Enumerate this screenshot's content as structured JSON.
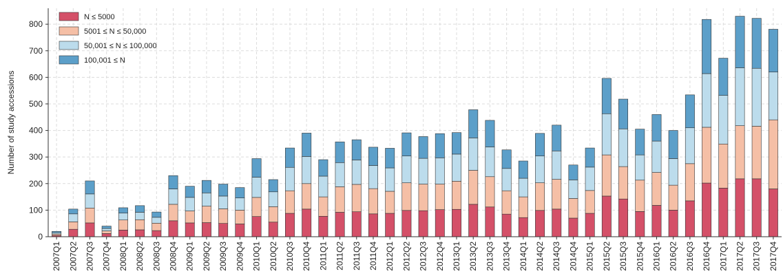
{
  "chart_data": {
    "type": "bar",
    "stacked": true,
    "ylabel": "Number of study accessions",
    "xlabel": "",
    "ylim": [
      0,
      860
    ],
    "yticks": [
      0,
      100,
      200,
      300,
      400,
      500,
      600,
      700,
      800
    ],
    "grid": true,
    "legend_position": "top-left",
    "categories": [
      "2007Q1",
      "2007Q2",
      "2007Q3",
      "2007Q4",
      "2008Q1",
      "2008Q2",
      "2008Q3",
      "2008Q4",
      "2009Q1",
      "2009Q2",
      "2009Q3",
      "2009Q4",
      "2010Q1",
      "2010Q2",
      "2010Q3",
      "2010Q4",
      "2011Q1",
      "2011Q2",
      "2011Q3",
      "2011Q4",
      "2012Q1",
      "2012Q2",
      "2012Q3",
      "2012Q4",
      "2013Q1",
      "2013Q2",
      "2013Q3",
      "2013Q4",
      "2014Q1",
      "2014Q2",
      "2014Q3",
      "2014Q4",
      "2015Q1",
      "2015Q2",
      "2015Q3",
      "2015Q4",
      "2016Q1",
      "2016Q2",
      "2016Q3",
      "2016Q4",
      "2017Q1",
      "2017Q2",
      "2017Q3",
      "2017Q4"
    ],
    "series": [
      {
        "name": "N ≤ 5000",
        "color": "#d45068",
        "values": [
          5,
          28,
          52,
          12,
          25,
          26,
          23,
          60,
          52,
          53,
          50,
          48,
          76,
          55,
          88,
          104,
          77,
          92,
          94,
          86,
          88,
          99,
          98,
          102,
          103,
          122,
          112,
          85,
          72,
          99,
          104,
          70,
          88,
          153,
          142,
          95,
          118,
          100,
          135,
          202,
          183,
          218,
          218,
          180
        ]
      },
      {
        "name": "5001 ≤ N ≤ 50,000",
        "color": "#f5bfa6",
        "values": [
          5,
          28,
          56,
          10,
          38,
          38,
          28,
          62,
          45,
          62,
          55,
          52,
          72,
          58,
          85,
          96,
          73,
          96,
          103,
          95,
          83,
          104,
          100,
          96,
          106,
          128,
          114,
          88,
          78,
          104,
          112,
          74,
          86,
          155,
          122,
          118,
          124,
          94,
          140,
          210,
          166,
          200,
          198,
          260
        ]
      },
      {
        "name": "50,001 ≤ N ≤ 100,000",
        "color": "#bcdcec",
        "values": [
          5,
          30,
          53,
          9,
          26,
          28,
          22,
          58,
          51,
          50,
          48,
          46,
          76,
          56,
          88,
          102,
          78,
          91,
          92,
          87,
          88,
          101,
          97,
          99,
          102,
          122,
          112,
          84,
          70,
          101,
          107,
          70,
          88,
          155,
          142,
          95,
          118,
          100,
          135,
          202,
          183,
          218,
          218,
          180
        ]
      },
      {
        "name": "100,001 ≤ N",
        "color": "#5c9fc9",
        "values": [
          5,
          18,
          49,
          9,
          20,
          25,
          20,
          50,
          42,
          47,
          45,
          39,
          70,
          46,
          73,
          88,
          62,
          78,
          76,
          69,
          74,
          87,
          82,
          91,
          81,
          106,
          100,
          70,
          65,
          85,
          97,
          56,
          72,
          133,
          112,
          97,
          100,
          106,
          124,
          204,
          140,
          194,
          188,
          161
        ]
      }
    ]
  }
}
